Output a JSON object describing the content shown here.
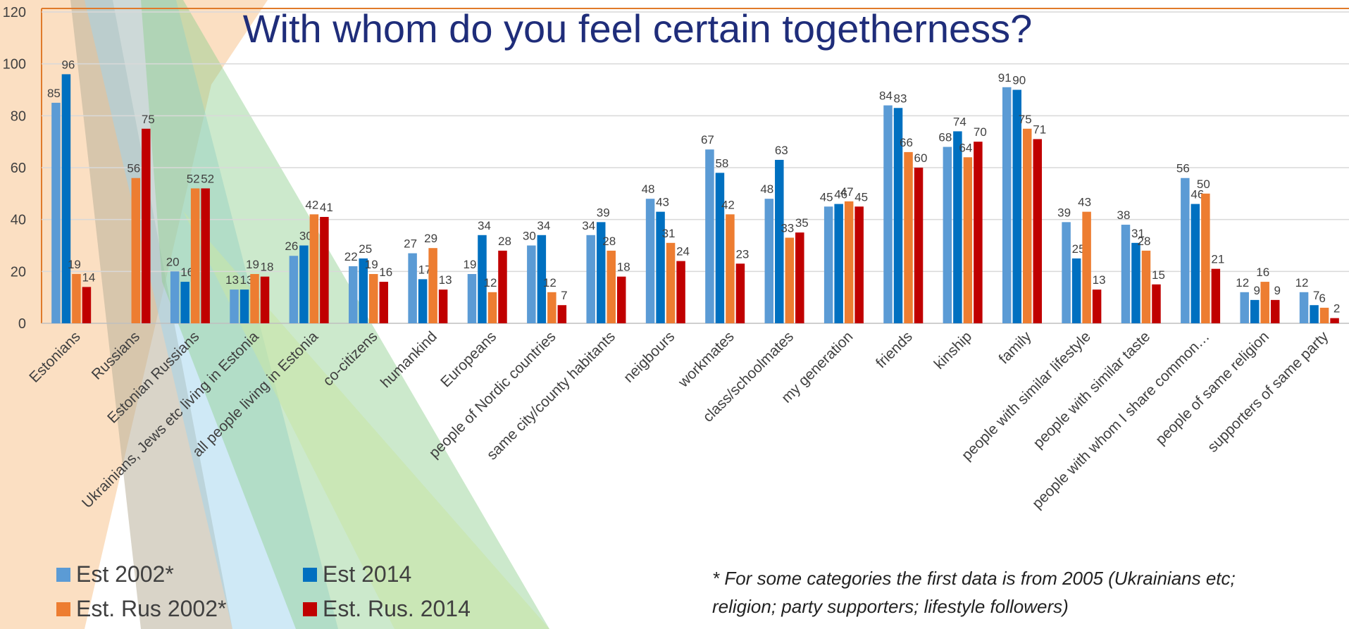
{
  "chart_data": {
    "type": "bar",
    "title": "With whom do you feel certain togetherness?",
    "categories": [
      "Estonians",
      "Russians",
      "Estonian Russians",
      "Ukrainians, Jews etc living in Estonia",
      "all people living in Estonia",
      "co-citizens",
      "humankind",
      "Europeans",
      "people of Nordic countries",
      "same city/county habitants",
      "neigbours",
      "workmates",
      "class/schoolmates",
      "my generation",
      "friends",
      "kinship",
      "family",
      "people with similar lifestyle",
      "people with similar taste",
      "people with whom I share common…",
      "people of same religion",
      "supporters of same party"
    ],
    "series": [
      {
        "name": "Est 2002*",
        "color": "#5b9bd5",
        "values": [
          85,
          null,
          20,
          13,
          26,
          22,
          27,
          19,
          30,
          34,
          48,
          67,
          48,
          45,
          84,
          68,
          91,
          39,
          38,
          56,
          12,
          12
        ]
      },
      {
        "name": "Est 2014",
        "color": "#0070c0",
        "values": [
          96,
          null,
          16,
          13,
          30,
          25,
          17,
          34,
          34,
          39,
          43,
          58,
          63,
          46,
          83,
          74,
          90,
          25,
          31,
          46,
          9,
          7
        ]
      },
      {
        "name": "Est. Rus 2002*",
        "color": "#ed7d31",
        "values": [
          19,
          56,
          52,
          19,
          42,
          19,
          29,
          12,
          12,
          28,
          31,
          42,
          33,
          47,
          66,
          64,
          75,
          43,
          28,
          50,
          16,
          6
        ]
      },
      {
        "name": "Est. Rus. 2014",
        "color": "#c00000",
        "values": [
          14,
          75,
          52,
          18,
          41,
          16,
          13,
          28,
          7,
          18,
          24,
          23,
          35,
          45,
          60,
          70,
          71,
          13,
          15,
          21,
          9,
          2
        ]
      }
    ],
    "ylim": [
      0,
      120
    ],
    "yticks": [
      0,
      20,
      40,
      60,
      80,
      100,
      120
    ],
    "grid": true,
    "footnote": [
      "* For some categories the first data is from 2005  (Ukrainians etc;",
      "religion; party supporters; lifestyle followers)"
    ]
  }
}
